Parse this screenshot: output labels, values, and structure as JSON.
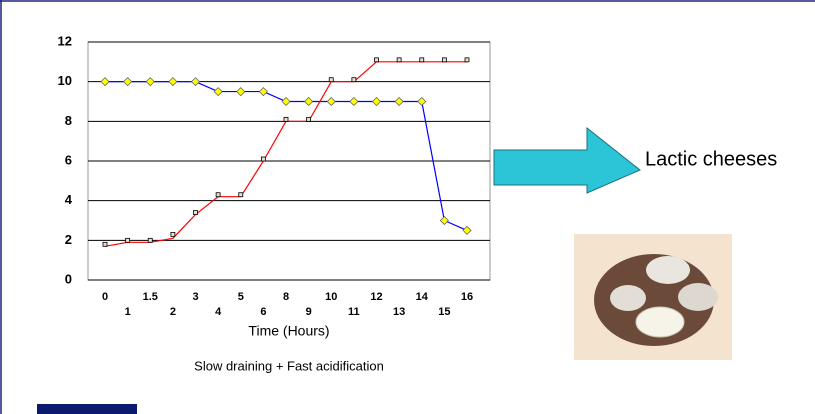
{
  "chart_data": {
    "type": "line",
    "x_label": "Time (Hours)",
    "caption": "Slow draining + Fast acidification",
    "categories": [
      "0",
      "1",
      "1.5",
      "2",
      "3",
      "4",
      "5",
      "6",
      "8",
      "9",
      "10",
      "11",
      "12",
      "13",
      "14",
      "15",
      "16"
    ],
    "series": [
      {
        "color": "#0000ff",
        "marker": "diamond",
        "marker_color": "#ffff00",
        "line": true,
        "values": [
          10,
          10,
          10,
          10,
          10,
          9.5,
          9.5,
          9.5,
          9,
          9,
          9,
          9,
          9,
          9,
          9,
          3,
          2.5
        ]
      },
      {
        "color": "#ff0000",
        "marker": "none",
        "line": true,
        "values": [
          1.7,
          1.9,
          1.9,
          2.1,
          3.3,
          4.2,
          4.2,
          6,
          8,
          8,
          10,
          10,
          11,
          11,
          11,
          11,
          11
        ]
      },
      {
        "color": "#000000",
        "marker": "square",
        "marker_color": "#e8e0d0",
        "line": false,
        "values": [
          1.8,
          2,
          2,
          2.3,
          3.4,
          4.3,
          4.3,
          6.1,
          8.1,
          8.1,
          10.1,
          10.1,
          11.1,
          11.1,
          11.1,
          11.1,
          11.1
        ]
      }
    ],
    "ylim": [
      0,
      12
    ],
    "yticks": [
      0,
      2,
      4,
      6,
      8,
      10,
      12
    ],
    "grid": true
  },
  "callout": "Lactic cheeses"
}
